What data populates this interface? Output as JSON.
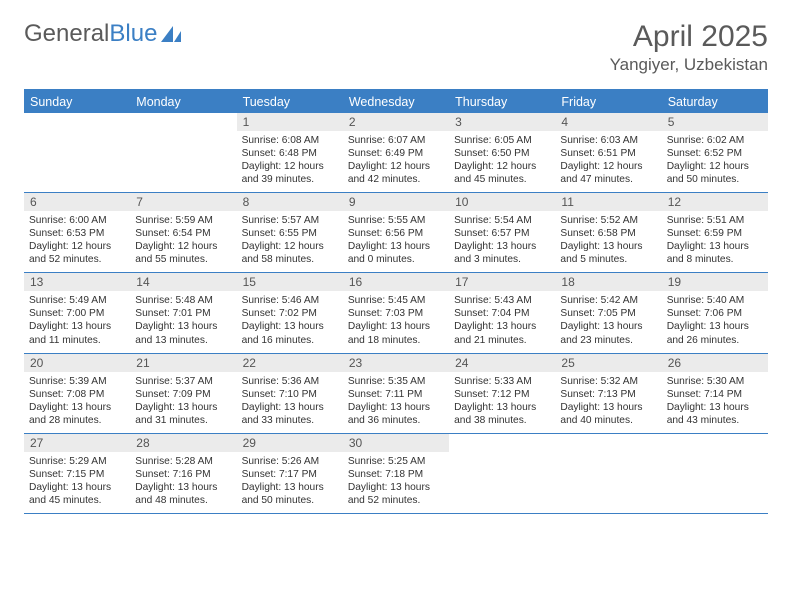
{
  "brand": {
    "part1": "General",
    "part2": "Blue"
  },
  "title": "April 2025",
  "location": "Yangiyer, Uzbekistan",
  "colors": {
    "accent": "#3b7fc4",
    "grayText": "#5a5a5a",
    "dayNumBg": "#ebebeb",
    "bodyText": "#333333",
    "background": "#ffffff"
  },
  "weekdays": [
    "Sunday",
    "Monday",
    "Tuesday",
    "Wednesday",
    "Thursday",
    "Friday",
    "Saturday"
  ],
  "weeks": [
    [
      null,
      null,
      {
        "n": "1",
        "sr": "6:08 AM",
        "ss": "6:48 PM",
        "dl": "12 hours and 39 minutes."
      },
      {
        "n": "2",
        "sr": "6:07 AM",
        "ss": "6:49 PM",
        "dl": "12 hours and 42 minutes."
      },
      {
        "n": "3",
        "sr": "6:05 AM",
        "ss": "6:50 PM",
        "dl": "12 hours and 45 minutes."
      },
      {
        "n": "4",
        "sr": "6:03 AM",
        "ss": "6:51 PM",
        "dl": "12 hours and 47 minutes."
      },
      {
        "n": "5",
        "sr": "6:02 AM",
        "ss": "6:52 PM",
        "dl": "12 hours and 50 minutes."
      }
    ],
    [
      {
        "n": "6",
        "sr": "6:00 AM",
        "ss": "6:53 PM",
        "dl": "12 hours and 52 minutes."
      },
      {
        "n": "7",
        "sr": "5:59 AM",
        "ss": "6:54 PM",
        "dl": "12 hours and 55 minutes."
      },
      {
        "n": "8",
        "sr": "5:57 AM",
        "ss": "6:55 PM",
        "dl": "12 hours and 58 minutes."
      },
      {
        "n": "9",
        "sr": "5:55 AM",
        "ss": "6:56 PM",
        "dl": "13 hours and 0 minutes."
      },
      {
        "n": "10",
        "sr": "5:54 AM",
        "ss": "6:57 PM",
        "dl": "13 hours and 3 minutes."
      },
      {
        "n": "11",
        "sr": "5:52 AM",
        "ss": "6:58 PM",
        "dl": "13 hours and 5 minutes."
      },
      {
        "n": "12",
        "sr": "5:51 AM",
        "ss": "6:59 PM",
        "dl": "13 hours and 8 minutes."
      }
    ],
    [
      {
        "n": "13",
        "sr": "5:49 AM",
        "ss": "7:00 PM",
        "dl": "13 hours and 11 minutes."
      },
      {
        "n": "14",
        "sr": "5:48 AM",
        "ss": "7:01 PM",
        "dl": "13 hours and 13 minutes."
      },
      {
        "n": "15",
        "sr": "5:46 AM",
        "ss": "7:02 PM",
        "dl": "13 hours and 16 minutes."
      },
      {
        "n": "16",
        "sr": "5:45 AM",
        "ss": "7:03 PM",
        "dl": "13 hours and 18 minutes."
      },
      {
        "n": "17",
        "sr": "5:43 AM",
        "ss": "7:04 PM",
        "dl": "13 hours and 21 minutes."
      },
      {
        "n": "18",
        "sr": "5:42 AM",
        "ss": "7:05 PM",
        "dl": "13 hours and 23 minutes."
      },
      {
        "n": "19",
        "sr": "5:40 AM",
        "ss": "7:06 PM",
        "dl": "13 hours and 26 minutes."
      }
    ],
    [
      {
        "n": "20",
        "sr": "5:39 AM",
        "ss": "7:08 PM",
        "dl": "13 hours and 28 minutes."
      },
      {
        "n": "21",
        "sr": "5:37 AM",
        "ss": "7:09 PM",
        "dl": "13 hours and 31 minutes."
      },
      {
        "n": "22",
        "sr": "5:36 AM",
        "ss": "7:10 PM",
        "dl": "13 hours and 33 minutes."
      },
      {
        "n": "23",
        "sr": "5:35 AM",
        "ss": "7:11 PM",
        "dl": "13 hours and 36 minutes."
      },
      {
        "n": "24",
        "sr": "5:33 AM",
        "ss": "7:12 PM",
        "dl": "13 hours and 38 minutes."
      },
      {
        "n": "25",
        "sr": "5:32 AM",
        "ss": "7:13 PM",
        "dl": "13 hours and 40 minutes."
      },
      {
        "n": "26",
        "sr": "5:30 AM",
        "ss": "7:14 PM",
        "dl": "13 hours and 43 minutes."
      }
    ],
    [
      {
        "n": "27",
        "sr": "5:29 AM",
        "ss": "7:15 PM",
        "dl": "13 hours and 45 minutes."
      },
      {
        "n": "28",
        "sr": "5:28 AM",
        "ss": "7:16 PM",
        "dl": "13 hours and 48 minutes."
      },
      {
        "n": "29",
        "sr": "5:26 AM",
        "ss": "7:17 PM",
        "dl": "13 hours and 50 minutes."
      },
      {
        "n": "30",
        "sr": "5:25 AM",
        "ss": "7:18 PM",
        "dl": "13 hours and 52 minutes."
      },
      null,
      null,
      null
    ]
  ],
  "labels": {
    "sunrise": "Sunrise: ",
    "sunset": "Sunset: ",
    "daylight": "Daylight: "
  }
}
